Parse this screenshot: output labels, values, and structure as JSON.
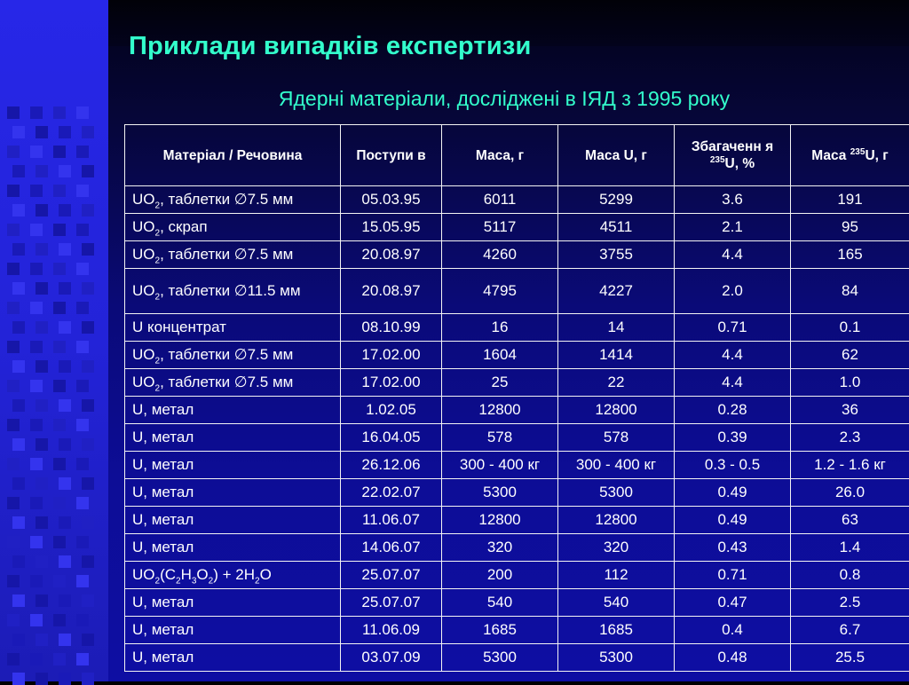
{
  "title": "Приклади випадків експертизи",
  "subtitle": "Ядерні матеріали, досліджені в ІЯД з 1995 року",
  "table": {
    "headers": [
      "Матеріал / Речовина",
      "Поступи в",
      "Маса, г",
      "Маса U, г",
      "Збагаченн я 235U, %",
      "Маса 235U, г"
    ],
    "rows": [
      {
        "material": "UO2, таблетки ∅7.5 мм",
        "date": "05.03.95",
        "mass": "6011",
        "mass_u": "5299",
        "enrichment": "3.6",
        "mass_u235": "191"
      },
      {
        "material": "UO2, скрап",
        "date": "15.05.95",
        "mass": "5117",
        "mass_u": "4511",
        "enrichment": "2.1",
        "mass_u235": "95"
      },
      {
        "material": "UO2, таблетки ∅7.5 мм",
        "date": "20.08.97",
        "mass": "4260",
        "mass_u": "3755",
        "enrichment": "4.4",
        "mass_u235": "165"
      },
      {
        "material": "UO2, таблетки ∅11.5 мм",
        "date": "20.08.97",
        "mass": "4795",
        "mass_u": "4227",
        "enrichment": "2.0",
        "mass_u235": "84"
      },
      {
        "material": "U концентрат",
        "date": "08.10.99",
        "mass": "16",
        "mass_u": "14",
        "enrichment": "0.71",
        "mass_u235": "0.1"
      },
      {
        "material": "UO2, таблетки ∅7.5 мм",
        "date": "17.02.00",
        "mass": "1604",
        "mass_u": "1414",
        "enrichment": "4.4",
        "mass_u235": "62"
      },
      {
        "material": "UO2, таблетки ∅7.5 мм",
        "date": "17.02.00",
        "mass": "25",
        "mass_u": "22",
        "enrichment": "4.4",
        "mass_u235": "1.0"
      },
      {
        "material": "U, метал",
        "date": "1.02.05",
        "mass": "12800",
        "mass_u": "12800",
        "enrichment": "0.28",
        "mass_u235": "36"
      },
      {
        "material": "U, метал",
        "date": "16.04.05",
        "mass": "578",
        "mass_u": "578",
        "enrichment": "0.39",
        "mass_u235": "2.3"
      },
      {
        "material": "U, метал",
        "date": "26.12.06",
        "mass": "300 - 400 кг",
        "mass_u": "300 - 400 кг",
        "enrichment": "0.3 - 0.5",
        "mass_u235": "1.2 - 1.6 кг"
      },
      {
        "material": "U, метал",
        "date": "22.02.07",
        "mass": "5300",
        "mass_u": "5300",
        "enrichment": "0.49",
        "mass_u235": "26.0"
      },
      {
        "material": "U, метал",
        "date": "11.06.07",
        "mass": "12800",
        "mass_u": "12800",
        "enrichment": "0.49",
        "mass_u235": "63"
      },
      {
        "material": "U, метал",
        "date": "14.06.07",
        "mass": "320",
        "mass_u": "320",
        "enrichment": "0.43",
        "mass_u235": "1.4"
      },
      {
        "material": "UO2(C2H3O2) + 2H2O",
        "date": "25.07.07",
        "mass": "200",
        "mass_u": "112",
        "enrichment": "0.71",
        "mass_u235": "0.8"
      },
      {
        "material": "U, метал",
        "date": "25.07.07",
        "mass": "540",
        "mass_u": "540",
        "enrichment": "0.47",
        "mass_u235": "2.5"
      },
      {
        "material": "U, метал",
        "date": "11.06.09",
        "mass": "1685",
        "mass_u": "1685",
        "enrichment": "0.4",
        "mass_u235": "6.7"
      },
      {
        "material": "U, метал",
        "date": "03.07.09",
        "mass": "5300",
        "mass_u": "5300",
        "enrichment": "0.48",
        "mass_u235": "25.5"
      }
    ]
  },
  "colors": {
    "title": "#33ffcc",
    "background": "#0e0ea3",
    "left_band": "#2323d8",
    "grid": "#f4f4f4",
    "text": "#ffffff"
  }
}
